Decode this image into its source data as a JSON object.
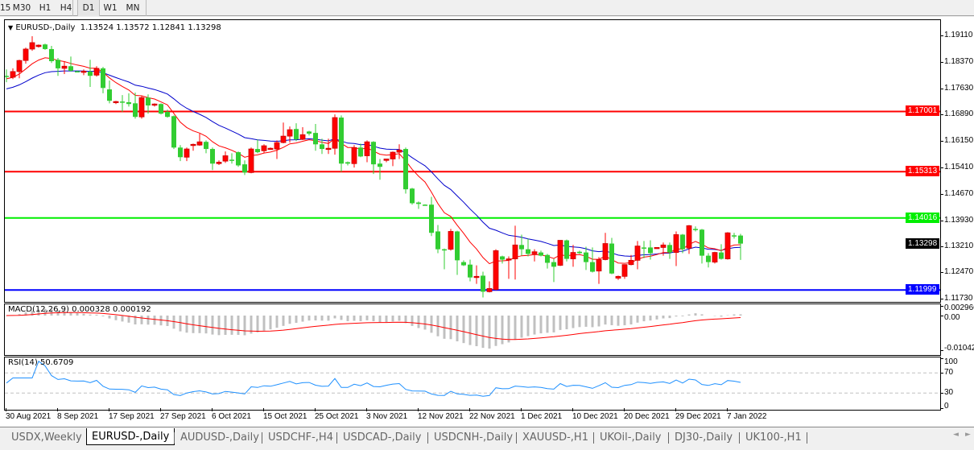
{
  "toolbar": {
    "timeframes": [
      "15",
      "M30",
      "H1",
      "H4",
      "D1",
      "W1",
      "MN"
    ],
    "active": "D1"
  },
  "chart": {
    "symbol_label": "EURUSD-,Daily",
    "ohlc_label": "1.13524 1.13572 1.12841 1.13298",
    "colors": {
      "bull": "#ff0000",
      "bear": "#32cd32",
      "ma_fast": "#ff0000",
      "ma_slow": "#0000cc"
    }
  },
  "chart_data": [
    {
      "type": "candlestick",
      "title": "EURUSD-,Daily",
      "ylim": [
        1.1162,
        1.1949
      ],
      "yticks": [
        "1.19110",
        "1.18370",
        "1.17630",
        "1.16890",
        "1.16150",
        "1.15410",
        "1.14670",
        "1.13930",
        "1.13210",
        "1.12470",
        "1.11730"
      ],
      "xticks": [
        {
          "bar": 0,
          "label": "30 Aug 2021"
        },
        {
          "bar": 8,
          "label": "8 Sep 2021"
        },
        {
          "bar": 16,
          "label": "17 Sep 2021"
        },
        {
          "bar": 24,
          "label": "27 Sep 2021"
        },
        {
          "bar": 32,
          "label": "6 Oct 2021"
        },
        {
          "bar": 40,
          "label": "15 Oct 2021"
        },
        {
          "bar": 48,
          "label": "25 Oct 2021"
        },
        {
          "bar": 56,
          "label": "3 Nov 2021"
        },
        {
          "bar": 64,
          "label": "12 Nov 2021"
        },
        {
          "bar": 72,
          "label": "22 Nov 2021"
        },
        {
          "bar": 80,
          "label": "1 Dec 2021"
        },
        {
          "bar": 88,
          "label": "10 Dec 2021"
        },
        {
          "bar": 96,
          "label": "20 Dec 2021"
        },
        {
          "bar": 104,
          "label": "29 Dec 2021"
        },
        {
          "bar": 112,
          "label": "7 Jan 2022"
        }
      ],
      "hlines": [
        {
          "value": "1.17001",
          "color": "#ff0000"
        },
        {
          "value": "1.15313",
          "color": "#ff0000"
        },
        {
          "value": "1.14016",
          "color": "#00ee00"
        },
        {
          "value": "1.11999",
          "color": "#0000ff"
        }
      ],
      "current_price": "1.13298",
      "ohlc": [
        [
          1.18,
          1.1818,
          1.1782,
          1.1798
        ],
        [
          1.1796,
          1.1821,
          1.1791,
          1.1812
        ],
        [
          1.1812,
          1.1845,
          1.1793,
          1.1843
        ],
        [
          1.1843,
          1.1879,
          1.1834,
          1.1875
        ],
        [
          1.1875,
          1.1911,
          1.187,
          1.1893
        ],
        [
          1.1882,
          1.1888,
          1.1879,
          1.1886
        ],
        [
          1.1888,
          1.189,
          1.1873,
          1.1875
        ],
        [
          1.1875,
          1.1884,
          1.1836,
          1.1841
        ],
        [
          1.1845,
          1.185,
          1.18,
          1.1821
        ],
        [
          1.1821,
          1.1841,
          1.1805,
          1.1827
        ],
        [
          1.1827,
          1.1854,
          1.1812,
          1.1814
        ],
        [
          1.1813,
          1.1814,
          1.1811,
          1.1812
        ],
        [
          1.1812,
          1.1818,
          1.1802,
          1.1813
        ],
        [
          1.1812,
          1.1845,
          1.1769,
          1.18
        ],
        [
          1.1802,
          1.1827,
          1.1798,
          1.1821
        ],
        [
          1.1821,
          1.1825,
          1.1751,
          1.1766
        ],
        [
          1.1762,
          1.1787,
          1.1723,
          1.173
        ],
        [
          1.1726,
          1.173,
          1.1721,
          1.1728
        ],
        [
          1.1728,
          1.1746,
          1.1699,
          1.1727
        ],
        [
          1.1726,
          1.1751,
          1.1714,
          1.1721
        ],
        [
          1.1723,
          1.1753,
          1.168,
          1.1685
        ],
        [
          1.1685,
          1.1744,
          1.168,
          1.1739
        ],
        [
          1.1739,
          1.1748,
          1.1694,
          1.1717
        ],
        [
          1.1719,
          1.1723,
          1.1714,
          1.1721
        ],
        [
          1.1721,
          1.1723,
          1.1692,
          1.1694
        ],
        [
          1.1699,
          1.1705,
          1.1683,
          1.1685
        ],
        [
          1.1687,
          1.1689,
          1.1595,
          1.1599
        ],
        [
          1.1599,
          1.1606,
          1.1561,
          1.1572
        ],
        [
          1.1572,
          1.1599,
          1.1561,
          1.1595
        ],
        [
          1.1608,
          1.161,
          1.159,
          1.1608
        ],
        [
          1.1606,
          1.1638,
          1.1604,
          1.1615
        ],
        [
          1.1615,
          1.1619,
          1.1583,
          1.1595
        ],
        [
          1.1595,
          1.1599,
          1.1536,
          1.1554
        ],
        [
          1.1554,
          1.1563,
          1.155,
          1.1558
        ],
        [
          1.1561,
          1.1588,
          1.1556,
          1.1576
        ],
        [
          1.1565,
          1.1583,
          1.1554,
          1.1563
        ],
        [
          1.1586,
          1.1588,
          1.1545,
          1.1549
        ],
        [
          1.1552,
          1.1563,
          1.1522,
          1.1529
        ],
        [
          1.1529,
          1.1599,
          1.1527,
          1.1595
        ],
        [
          1.1595,
          1.1622,
          1.1583,
          1.1586
        ],
        [
          1.159,
          1.1608,
          1.1583,
          1.1604
        ],
        [
          1.1597,
          1.1599,
          1.1595,
          1.1597
        ],
        [
          1.1595,
          1.1619,
          1.1567,
          1.1613
        ],
        [
          1.1613,
          1.1669,
          1.1611,
          1.1631
        ],
        [
          1.1631,
          1.1658,
          1.1613,
          1.1649
        ],
        [
          1.1651,
          1.1667,
          1.1617,
          1.1622
        ],
        [
          1.1622,
          1.1656,
          1.162,
          1.1635
        ],
        [
          1.1644,
          1.1646,
          1.1633,
          1.1638
        ],
        [
          1.164,
          1.1665,
          1.159,
          1.1608
        ],
        [
          1.1608,
          1.1624,
          1.1581,
          1.1595
        ],
        [
          1.1595,
          1.1624,
          1.1581,
          1.1597
        ],
        [
          1.1597,
          1.1692,
          1.1579,
          1.1683
        ],
        [
          1.1683,
          1.1689,
          1.1531,
          1.1554
        ],
        [
          1.1558,
          1.156,
          1.1549,
          1.1554
        ],
        [
          1.1554,
          1.1606,
          1.1543,
          1.1599
        ],
        [
          1.1599,
          1.161,
          1.1572,
          1.1574
        ],
        [
          1.1576,
          1.1619,
          1.1558,
          1.1615
        ],
        [
          1.1615,
          1.1617,
          1.1525,
          1.1552
        ],
        [
          1.1554,
          1.1567,
          1.1509,
          1.1545
        ],
        [
          1.1563,
          1.1567,
          1.1558,
          1.1567
        ],
        [
          1.1567,
          1.1588,
          1.1547,
          1.1586
        ],
        [
          1.1586,
          1.1608,
          1.1567,
          1.1592
        ],
        [
          1.1595,
          1.1599,
          1.147,
          1.1482
        ],
        [
          1.1484,
          1.1486,
          1.1439,
          1.1443
        ],
        [
          1.1445,
          1.1448,
          1.1427,
          1.1441
        ],
        [
          1.1439,
          1.144,
          1.1437,
          1.1438
        ],
        [
          1.1439,
          1.1461,
          1.1351,
          1.136
        ],
        [
          1.1364,
          1.1382,
          1.1303,
          1.1314
        ],
        [
          1.1314,
          1.1316,
          1.1258,
          1.1313
        ],
        [
          1.1314,
          1.1371,
          1.131,
          1.1364
        ],
        [
          1.1364,
          1.1366,
          1.1242,
          1.1283
        ],
        [
          1.1278,
          1.1283,
          1.1267,
          1.1269
        ],
        [
          1.1271,
          1.1285,
          1.1224,
          1.1235
        ],
        [
          1.1237,
          1.1269,
          1.1217,
          1.1238
        ],
        [
          1.124,
          1.1251,
          1.1179,
          1.1195
        ],
        [
          1.1195,
          1.1224,
          1.1193,
          1.1204
        ],
        [
          1.1201,
          1.1314,
          1.1199,
          1.131
        ],
        [
          1.1294,
          1.1296,
          1.1274,
          1.1285
        ],
        [
          1.1287,
          1.1294,
          1.1231,
          1.1287
        ],
        [
          1.1287,
          1.138,
          1.1229,
          1.1326
        ],
        [
          1.1326,
          1.1355,
          1.1296,
          1.1314
        ],
        [
          1.1314,
          1.1344,
          1.1294,
          1.1301
        ],
        [
          1.1301,
          1.1314,
          1.128,
          1.1307
        ],
        [
          1.1305,
          1.131,
          1.1294,
          1.1296
        ],
        [
          1.1298,
          1.1301,
          1.126,
          1.1276
        ],
        [
          1.1278,
          1.1287,
          1.1222,
          1.1265
        ],
        [
          1.1269,
          1.1339,
          1.1267,
          1.1339
        ],
        [
          1.1339,
          1.1341,
          1.128,
          1.1287
        ],
        [
          1.1287,
          1.1326,
          1.1265,
          1.1305
        ],
        [
          1.1307,
          1.131,
          1.1301,
          1.1303
        ],
        [
          1.1305,
          1.1321,
          1.1256,
          1.1278
        ],
        [
          1.1278,
          1.1319,
          1.1249,
          1.1251
        ],
        [
          1.1253,
          1.1292,
          1.1217,
          1.1285
        ],
        [
          1.1285,
          1.136,
          1.1283,
          1.133
        ],
        [
          1.133,
          1.1346,
          1.1244,
          1.1246
        ],
        [
          1.1233,
          1.124,
          1.1228,
          1.1238
        ],
        [
          1.1238,
          1.1269,
          1.1231,
          1.1271
        ],
        [
          1.1271,
          1.1298,
          1.1269,
          1.1283
        ],
        [
          1.1283,
          1.1337,
          1.1258,
          1.1323
        ],
        [
          1.1319,
          1.1337,
          1.1289,
          1.1317
        ],
        [
          1.1319,
          1.1339,
          1.1285,
          1.1303
        ],
        [
          1.1318,
          1.132,
          1.1315,
          1.1319
        ],
        [
          1.1319,
          1.1333,
          1.1296,
          1.1326
        ],
        [
          1.1326,
          1.1333,
          1.1287,
          1.1305
        ],
        [
          1.1305,
          1.1364,
          1.1267,
          1.1355
        ],
        [
          1.1355,
          1.1357,
          1.1303,
          1.1314
        ],
        [
          1.1317,
          1.1382,
          1.1301,
          1.138
        ],
        [
          1.1371,
          1.1378,
          1.1364,
          1.1369
        ],
        [
          1.1369,
          1.1371,
          1.1274,
          1.1296
        ],
        [
          1.1296,
          1.1303,
          1.1263,
          1.1278
        ],
        [
          1.1278,
          1.1307,
          1.1274,
          1.1305
        ],
        [
          1.1305,
          1.1328,
          1.1285,
          1.1287
        ],
        [
          1.1287,
          1.1362,
          1.1285,
          1.136
        ],
        [
          1.1353,
          1.136,
          1.1344,
          1.135
        ],
        [
          1.13524,
          1.13572,
          1.12841,
          1.13298
        ]
      ]
    },
    {
      "type": "bar",
      "title": "MACD(12,26,9) 0.000328 0.000192",
      "yticks": [
        "0.002966",
        "0.00",
        "-0.010422"
      ],
      "ylim": [
        -0.010422,
        0.002966
      ]
    },
    {
      "type": "line",
      "title": "RSI(14) 50.6709",
      "yticks": [
        "100",
        "70",
        "30",
        "0"
      ],
      "ylim": [
        0,
        100
      ],
      "levels": [
        70,
        30
      ]
    }
  ],
  "tabs": [
    "USDX,Weekly",
    "EURUSD-,Daily",
    "AUDUSD-,Daily",
    "USDCHF-,H4",
    "USDCAD-,Daily",
    "USDCNH-,Daily",
    "XAUUSD-,H1",
    "UKOil-,Daily",
    "DJ30-,Daily",
    "UK100-,H1"
  ],
  "active_tab": "EURUSD-,Daily",
  "scroll": {
    "left": "◄",
    "right": "►"
  }
}
